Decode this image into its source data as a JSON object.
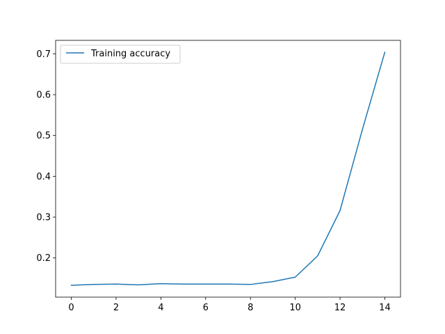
{
  "chart_data": {
    "type": "line",
    "title": "",
    "xlabel": "",
    "ylabel": "",
    "x": [
      0,
      1,
      2,
      3,
      4,
      5,
      6,
      7,
      8,
      9,
      10,
      11,
      12,
      13,
      14
    ],
    "series": [
      {
        "name": "Training accuracy",
        "color": "#1f77b4",
        "values": [
          0.133,
          0.135,
          0.136,
          0.134,
          0.137,
          0.136,
          0.136,
          0.136,
          0.135,
          0.142,
          0.153,
          0.205,
          0.316,
          0.515,
          0.704
        ]
      }
    ],
    "xlim": [
      -0.7,
      14.7
    ],
    "ylim": [
      0.104,
      0.733
    ],
    "xticks": [
      0,
      2,
      4,
      6,
      8,
      10,
      12,
      14
    ],
    "yticks": [
      0.2,
      0.3,
      0.4,
      0.5,
      0.6,
      0.7
    ],
    "xtick_labels": [
      "0",
      "2",
      "4",
      "6",
      "8",
      "10",
      "12",
      "14"
    ],
    "ytick_labels": [
      "0.2",
      "0.3",
      "0.4",
      "0.5",
      "0.6",
      "0.7"
    ],
    "grid": false,
    "legend_position": "top-left"
  }
}
